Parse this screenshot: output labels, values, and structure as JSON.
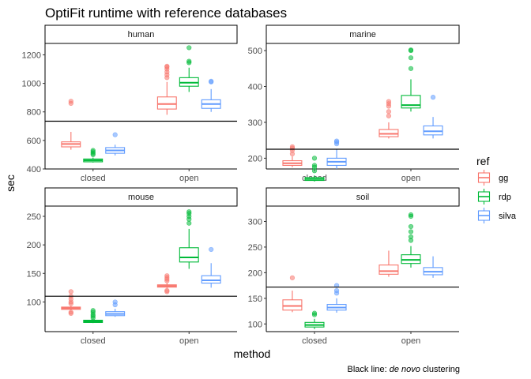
{
  "chart_data": {
    "type": "boxplot",
    "title": "OptiFit runtime with reference databases",
    "xlabel": "method",
    "ylabel": "sec",
    "caption_prefix": "Black line: ",
    "caption_italic": "de novo",
    "caption_suffix": " clustering",
    "legend": {
      "title": "ref",
      "position": "right",
      "entries": [
        {
          "name": "gg",
          "color": "#F8766D"
        },
        {
          "name": "rdp",
          "color": "#00BA38"
        },
        {
          "name": "silva",
          "color": "#619CFF"
        }
      ]
    },
    "categories": [
      "closed",
      "open"
    ],
    "grid": false,
    "panels": [
      {
        "name": "human",
        "ylim": [
          400,
          1280
        ],
        "yticks": [
          400,
          600,
          800,
          1000,
          1200
        ],
        "reference_line": 735,
        "groups": [
          {
            "method": "closed",
            "ref": "gg",
            "min": 535,
            "q1": 555,
            "median": 575,
            "q3": 590,
            "max": 660,
            "outliers": [
              860,
              875
            ]
          },
          {
            "method": "closed",
            "ref": "rdp",
            "min": 445,
            "q1": 450,
            "median": 460,
            "q3": 470,
            "max": 480,
            "outliers": [
              500,
              510,
              520,
              530
            ]
          },
          {
            "method": "closed",
            "ref": "silva",
            "min": 495,
            "q1": 510,
            "median": 530,
            "q3": 550,
            "max": 570,
            "outliers": [
              640
            ]
          },
          {
            "method": "open",
            "ref": "gg",
            "min": 780,
            "q1": 820,
            "median": 855,
            "q3": 905,
            "max": 1010,
            "outliers": [
              1040,
              1060,
              1080,
              1100,
              1115,
              1120
            ]
          },
          {
            "method": "open",
            "ref": "rdp",
            "min": 940,
            "q1": 980,
            "median": 1005,
            "q3": 1040,
            "max": 1110,
            "outliers": [
              1145,
              1155,
              1250
            ]
          },
          {
            "method": "open",
            "ref": "silva",
            "min": 800,
            "q1": 825,
            "median": 855,
            "q3": 885,
            "max": 960,
            "outliers": [
              1010,
              1015
            ]
          }
        ]
      },
      {
        "name": "marine",
        "ylim": [
          170,
          520
        ],
        "yticks": [
          200,
          300,
          400,
          500
        ],
        "reference_line": 225,
        "groups": [
          {
            "method": "closed",
            "ref": "gg",
            "min": 175,
            "q1": 180,
            "median": 186,
            "q3": 193,
            "max": 205,
            "outliers": [
              212,
              222,
              228,
              232
            ]
          },
          {
            "method": "closed",
            "ref": "rdp",
            "min": 135,
            "q1": 138,
            "median": 142,
            "q3": 146,
            "max": 152,
            "outliers": [
              165,
              175,
              180,
              200
            ]
          },
          {
            "method": "closed",
            "ref": "silva",
            "min": 170,
            "q1": 180,
            "median": 190,
            "q3": 200,
            "max": 225,
            "outliers": [
              240,
              245,
              248
            ]
          },
          {
            "method": "open",
            "ref": "gg",
            "min": 255,
            "q1": 260,
            "median": 268,
            "q3": 280,
            "max": 300,
            "outliers": [
              318,
              330,
              345,
              352,
              358
            ]
          },
          {
            "method": "open",
            "ref": "rdp",
            "min": 330,
            "q1": 340,
            "median": 348,
            "q3": 375,
            "max": 420,
            "outliers": [
              450,
              480,
              500,
              502
            ]
          },
          {
            "method": "open",
            "ref": "silva",
            "min": 255,
            "q1": 265,
            "median": 275,
            "q3": 290,
            "max": 315,
            "outliers": [
              370
            ]
          }
        ]
      },
      {
        "name": "mouse",
        "ylim": [
          48,
          268
        ],
        "yticks": [
          100,
          150,
          200,
          250
        ],
        "reference_line": 110,
        "groups": [
          {
            "method": "closed",
            "ref": "gg",
            "min": 85,
            "q1": 87,
            "median": 89,
            "q3": 91,
            "max": 93,
            "outliers": [
              80,
              82,
              97,
              100,
              105,
              110,
              118
            ]
          },
          {
            "method": "closed",
            "ref": "rdp",
            "min": 63,
            "q1": 64,
            "median": 66,
            "q3": 68,
            "max": 70,
            "outliers": [
              72,
              75,
              78,
              82,
              85
            ]
          },
          {
            "method": "closed",
            "ref": "silva",
            "min": 74,
            "q1": 76,
            "median": 79,
            "q3": 83,
            "max": 88,
            "outliers": [
              95,
              100
            ]
          },
          {
            "method": "open",
            "ref": "gg",
            "min": 124,
            "q1": 126,
            "median": 128,
            "q3": 130,
            "max": 133,
            "outliers": [
              118,
              120,
              137,
              140,
              143,
              146
            ]
          },
          {
            "method": "open",
            "ref": "rdp",
            "min": 158,
            "q1": 170,
            "median": 178,
            "q3": 195,
            "max": 228,
            "outliers": [
              238,
              245,
              250,
              255,
              258
            ]
          },
          {
            "method": "open",
            "ref": "silva",
            "min": 125,
            "q1": 133,
            "median": 138,
            "q3": 146,
            "max": 168,
            "outliers": [
              192
            ]
          }
        ]
      },
      {
        "name": "soil",
        "ylim": [
          85,
          330
        ],
        "yticks": [
          100,
          150,
          200,
          250,
          300
        ],
        "reference_line": 172,
        "groups": [
          {
            "method": "closed",
            "ref": "gg",
            "min": 123,
            "q1": 127,
            "median": 135,
            "q3": 147,
            "max": 165,
            "outliers": [
              190
            ]
          },
          {
            "method": "closed",
            "ref": "rdp",
            "min": 90,
            "q1": 94,
            "median": 98,
            "q3": 103,
            "max": 110,
            "outliers": [
              118,
              121
            ]
          },
          {
            "method": "closed",
            "ref": "silva",
            "min": 122,
            "q1": 127,
            "median": 132,
            "q3": 138,
            "max": 150,
            "outliers": [
              160,
              165,
              175
            ]
          },
          {
            "method": "open",
            "ref": "gg",
            "min": 192,
            "q1": 197,
            "median": 203,
            "q3": 215,
            "max": 243,
            "outliers": []
          },
          {
            "method": "open",
            "ref": "rdp",
            "min": 210,
            "q1": 218,
            "median": 225,
            "q3": 235,
            "max": 252,
            "outliers": [
              263,
              270,
              280,
              290,
              310,
              313
            ]
          },
          {
            "method": "open",
            "ref": "silva",
            "min": 190,
            "q1": 196,
            "median": 202,
            "q3": 210,
            "max": 232,
            "outliers": []
          }
        ]
      }
    ]
  }
}
